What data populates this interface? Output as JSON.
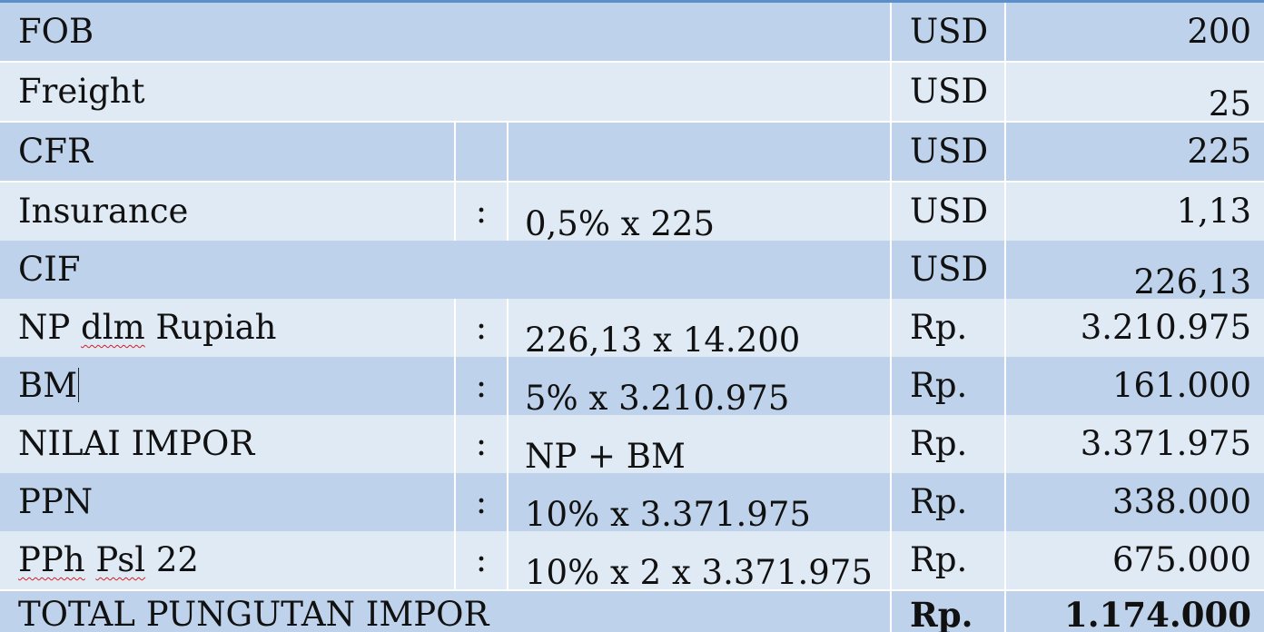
{
  "rows": [
    {
      "label": "FOB",
      "colon": "",
      "formula": "",
      "unit": "USD",
      "amount": "200"
    },
    {
      "label": "Freight",
      "colon": "",
      "formula": "",
      "unit": "USD",
      "amount": "25"
    },
    {
      "label": "CFR",
      "colon": "",
      "formula": "",
      "unit": "USD",
      "amount": "225"
    },
    {
      "label": "Insurance",
      "colon": ":",
      "formula": "0,5% x 225",
      "unit": "USD",
      "amount": "1,13"
    },
    {
      "label": "CIF",
      "colon": "",
      "formula": "",
      "unit": "USD",
      "amount": "226,13"
    },
    {
      "label_pre": "NP ",
      "label_mark": "dlm",
      "label_post": " Rupiah",
      "colon": ":",
      "formula": "226,13 x 14.200",
      "unit": "Rp.",
      "amount": "3.210.975"
    },
    {
      "label": "BM",
      "colon": ":",
      "formula": "5% x 3.210.975",
      "unit": "Rp.",
      "amount": "161.000"
    },
    {
      "label": "NILAI IMPOR",
      "colon": ":",
      "formula": "NP + BM",
      "unit": "Rp.",
      "amount": "3.371.975"
    },
    {
      "label": "PPN",
      "colon": ":",
      "formula": "10% x 3.371.975",
      "unit": "Rp.",
      "amount": "338.000"
    },
    {
      "label_mark": "PPh",
      "label_pre": " ",
      "label_mark2": "Psl",
      "label_post": " 22",
      "colon": ":",
      "formula": "10% x 2 x 3.371.975",
      "unit": "Rp.",
      "amount": "675.000"
    },
    {
      "label": "TOTAL PUNGUTAN IMPOR",
      "colon": "",
      "formula": "",
      "unit": "Rp.",
      "amount": "1.174.000"
    }
  ]
}
